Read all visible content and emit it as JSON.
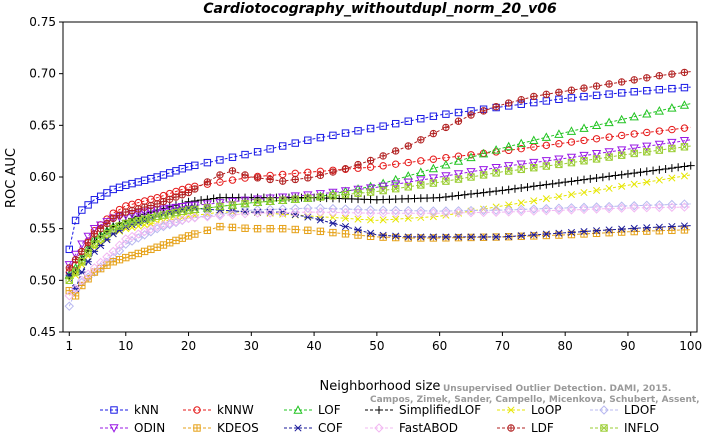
{
  "chart_data": {
    "type": "line",
    "title": "Cardiotocography_withoutdupl_norm_20_v06",
    "xlabel": "Neighborhood size",
    "ylabel": "ROC AUC",
    "xlim": [
      0,
      101
    ],
    "ylim": [
      0.45,
      0.75
    ],
    "xticks": [
      1,
      10,
      20,
      30,
      40,
      50,
      60,
      70,
      80,
      90,
      100
    ],
    "yticks": [
      "0.45",
      "0.50",
      "0.55",
      "0.60",
      "0.65",
      "0.70",
      "0.75"
    ],
    "legend_position": "bottom",
    "watermark": [
      "Unsupervised Outlier Detection. DAMI, 2015.",
      "Campos, Zimek, Sander, Campello, Micenkova, Schubert, Assent, Houle"
    ],
    "series": [
      {
        "name": "kNN",
        "color": "#1a1ae6",
        "marker": "square",
        "x": [
          1,
          2,
          3,
          5,
          8,
          10,
          15,
          20,
          30,
          40,
          50,
          60,
          70,
          80,
          90,
          100
        ],
        "y": [
          0.53,
          0.558,
          0.568,
          0.578,
          0.588,
          0.592,
          0.6,
          0.61,
          0.623,
          0.637,
          0.648,
          0.66,
          0.668,
          0.676,
          0.682,
          0.687
        ]
      },
      {
        "name": "kNNW",
        "color": "#e61a1a",
        "marker": "circle",
        "x": [
          1,
          2,
          3,
          5,
          8,
          10,
          15,
          20,
          30,
          40,
          50,
          60,
          70,
          80,
          90,
          100
        ],
        "y": [
          0.508,
          0.515,
          0.528,
          0.548,
          0.565,
          0.572,
          0.58,
          0.59,
          0.6,
          0.605,
          0.61,
          0.618,
          0.625,
          0.633,
          0.641,
          0.648
        ]
      },
      {
        "name": "LOF",
        "color": "#22c422",
        "marker": "triangle-up",
        "x": [
          1,
          2,
          3,
          5,
          8,
          10,
          15,
          20,
          30,
          40,
          50,
          60,
          70,
          80,
          90,
          100
        ],
        "y": [
          0.505,
          0.512,
          0.522,
          0.54,
          0.552,
          0.555,
          0.562,
          0.568,
          0.575,
          0.58,
          0.592,
          0.61,
          0.628,
          0.643,
          0.657,
          0.671
        ]
      },
      {
        "name": "SimplifiedLOF",
        "color": "#000000",
        "marker": "plus",
        "x": [
          1,
          2,
          3,
          5,
          8,
          10,
          15,
          20,
          25,
          30,
          40,
          50,
          60,
          70,
          80,
          90,
          100
        ],
        "y": [
          0.503,
          0.508,
          0.52,
          0.538,
          0.552,
          0.558,
          0.568,
          0.576,
          0.58,
          0.58,
          0.58,
          0.578,
          0.58,
          0.587,
          0.595,
          0.603,
          0.611
        ]
      },
      {
        "name": "LoOP",
        "color": "#e6e600",
        "marker": "x",
        "x": [
          1,
          2,
          3,
          5,
          8,
          10,
          15,
          20,
          25,
          30,
          40,
          50,
          60,
          70,
          80,
          90,
          100
        ],
        "y": [
          0.5,
          0.505,
          0.515,
          0.532,
          0.545,
          0.55,
          0.556,
          0.562,
          0.566,
          0.566,
          0.562,
          0.558,
          0.562,
          0.572,
          0.582,
          0.592,
          0.602
        ]
      },
      {
        "name": "LDOF",
        "color": "#b8b8f0",
        "marker": "diamond",
        "x": [
          1,
          2,
          3,
          5,
          8,
          10,
          15,
          20,
          30,
          40,
          50,
          60,
          70,
          80,
          90,
          100
        ],
        "y": [
          0.475,
          0.49,
          0.498,
          0.508,
          0.522,
          0.535,
          0.55,
          0.56,
          0.568,
          0.57,
          0.568,
          0.567,
          0.568,
          0.57,
          0.572,
          0.574
        ]
      },
      {
        "name": "ODIN",
        "color": "#9a1ae6",
        "marker": "triangle-down",
        "x": [
          1,
          2,
          3,
          5,
          8,
          10,
          15,
          20,
          30,
          40,
          50,
          60,
          70,
          80,
          90,
          100
        ],
        "y": [
          0.515,
          0.525,
          0.535,
          0.55,
          0.56,
          0.563,
          0.568,
          0.572,
          0.578,
          0.583,
          0.59,
          0.6,
          0.61,
          0.618,
          0.627,
          0.636
        ]
      },
      {
        "name": "KDEOS",
        "color": "#e6a21a",
        "marker": "boxplus",
        "x": [
          1,
          2,
          3,
          5,
          8,
          10,
          15,
          20,
          25,
          30,
          35,
          40,
          45,
          50,
          55,
          60,
          70,
          80,
          90,
          100
        ],
        "y": [
          0.49,
          0.485,
          0.495,
          0.508,
          0.518,
          0.522,
          0.532,
          0.543,
          0.552,
          0.55,
          0.55,
          0.548,
          0.545,
          0.542,
          0.541,
          0.541,
          0.542,
          0.544,
          0.547,
          0.549
        ]
      },
      {
        "name": "COF",
        "color": "#1a1a9a",
        "marker": "asterisk",
        "x": [
          1,
          2,
          3,
          5,
          8,
          10,
          15,
          20,
          25,
          30,
          35,
          40,
          45,
          50,
          55,
          60,
          70,
          80,
          90,
          100
        ],
        "y": [
          0.505,
          0.492,
          0.508,
          0.528,
          0.545,
          0.552,
          0.562,
          0.57,
          0.568,
          0.566,
          0.566,
          0.56,
          0.552,
          0.544,
          0.542,
          0.542,
          0.542,
          0.546,
          0.55,
          0.553
        ]
      },
      {
        "name": "FastABOD",
        "color": "#f2b8f2",
        "marker": "diamond",
        "x": [
          1,
          2,
          3,
          5,
          8,
          10,
          15,
          20,
          30,
          40,
          50,
          60,
          70,
          80,
          90,
          100
        ],
        "y": [
          0.485,
          0.492,
          0.5,
          0.512,
          0.528,
          0.54,
          0.552,
          0.56,
          0.565,
          0.566,
          0.565,
          0.565,
          0.566,
          0.568,
          0.57,
          0.571
        ]
      },
      {
        "name": "LDF",
        "color": "#b22222",
        "marker": "circleplus",
        "x": [
          1,
          2,
          3,
          5,
          8,
          10,
          15,
          20,
          25,
          27,
          30,
          35,
          40,
          45,
          50,
          55,
          60,
          65,
          70,
          75,
          80,
          85,
          90,
          95,
          100
        ],
        "y": [
          0.512,
          0.52,
          0.528,
          0.545,
          0.56,
          0.566,
          0.574,
          0.585,
          0.602,
          0.606,
          0.6,
          0.596,
          0.6,
          0.608,
          0.618,
          0.63,
          0.645,
          0.66,
          0.67,
          0.678,
          0.683,
          0.688,
          0.693,
          0.698,
          0.702
        ]
      },
      {
        "name": "INFLO",
        "color": "#9acd32",
        "marker": "boxtimes",
        "x": [
          1,
          2,
          3,
          5,
          8,
          10,
          15,
          20,
          30,
          40,
          50,
          60,
          70,
          80,
          90,
          100
        ],
        "y": [
          0.5,
          0.508,
          0.518,
          0.535,
          0.55,
          0.555,
          0.562,
          0.568,
          0.575,
          0.58,
          0.586,
          0.595,
          0.605,
          0.613,
          0.622,
          0.63
        ]
      }
    ]
  }
}
